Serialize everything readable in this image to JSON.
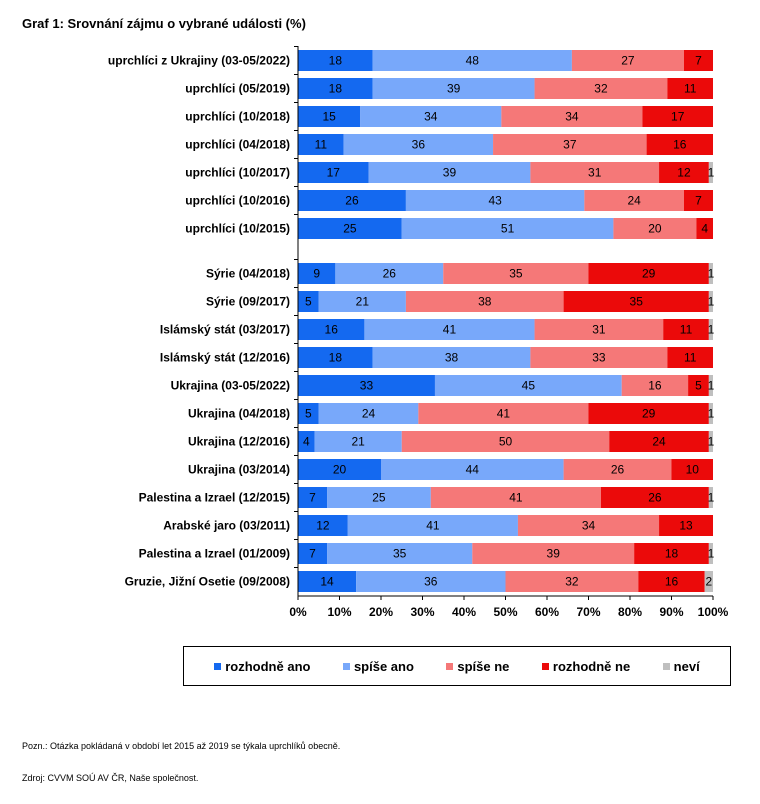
{
  "title": "Graf 1: Srovnání zájmu o vybrané události (%)",
  "note": "Pozn.: Otázka pokládaná v období let 2015 až 2019 se týkala uprchlíků obecně.",
  "source": "Zdroj: CVVM SOÚ AV ČR, Naše společnost.",
  "chart_data": {
    "type": "bar",
    "orientation": "horizontal",
    "stacked": "100%",
    "xlim": [
      0,
      100
    ],
    "x_ticks": [
      "0%",
      "10%",
      "20%",
      "30%",
      "40%",
      "50%",
      "60%",
      "70%",
      "80%",
      "90%",
      "100%"
    ],
    "legend_position": "bottom",
    "series": [
      {
        "name": "rozhodně ano",
        "color": "#1469f0"
      },
      {
        "name": "spíše ano",
        "color": "#78a8fa"
      },
      {
        "name": "spíše ne",
        "color": "#f57878"
      },
      {
        "name": "rozhodně ne",
        "color": "#eb0a0a"
      },
      {
        "name": "neví",
        "color": "#bfbfbf"
      }
    ],
    "rows": [
      {
        "label": "uprchlíci z Ukrajiny (03-05/2022)",
        "values": [
          18,
          48,
          27,
          7,
          0
        ]
      },
      {
        "label": "uprchlíci (05/2019)",
        "values": [
          18,
          39,
          32,
          11,
          0
        ]
      },
      {
        "label": "uprchlíci (10/2018)",
        "values": [
          15,
          34,
          34,
          17,
          0
        ]
      },
      {
        "label": "uprchlíci (04/2018)",
        "values": [
          11,
          36,
          37,
          16,
          0
        ]
      },
      {
        "label": "uprchlíci (10/2017)",
        "values": [
          17,
          39,
          31,
          12,
          1
        ]
      },
      {
        "label": "uprchlíci (10/2016)",
        "values": [
          26,
          43,
          24,
          7,
          0
        ]
      },
      {
        "label": "uprchlíci (10/2015)",
        "values": [
          25,
          51,
          20,
          4,
          0
        ]
      },
      {
        "label": "Sýrie (04/2018)",
        "values": [
          9,
          26,
          35,
          29,
          1
        ]
      },
      {
        "label": "Sýrie (09/2017)",
        "values": [
          5,
          21,
          38,
          35,
          1
        ]
      },
      {
        "label": "Islámský stát (03/2017)",
        "values": [
          16,
          41,
          31,
          11,
          1
        ]
      },
      {
        "label": "Islámský stát (12/2016)",
        "values": [
          18,
          38,
          33,
          11,
          0
        ]
      },
      {
        "label": "Ukrajina (03-05/2022)",
        "values": [
          33,
          45,
          16,
          5,
          1
        ]
      },
      {
        "label": "Ukrajina (04/2018)",
        "values": [
          5,
          24,
          41,
          29,
          1
        ]
      },
      {
        "label": "Ukrajina (12/2016)",
        "values": [
          4,
          21,
          50,
          24,
          1
        ]
      },
      {
        "label": "Ukrajina (03/2014)",
        "values": [
          20,
          44,
          26,
          10,
          0
        ]
      },
      {
        "label": "Palestina a Izrael (12/2015)",
        "values": [
          7,
          25,
          41,
          26,
          1
        ]
      },
      {
        "label": "Arabské jaro (03/2011)",
        "values": [
          12,
          41,
          34,
          13,
          0
        ]
      },
      {
        "label": "Palestina a Izrael (01/2009)",
        "values": [
          7,
          35,
          39,
          18,
          1
        ]
      },
      {
        "label": "Gruzie, Jižní Osetie (09/2008)",
        "values": [
          14,
          36,
          32,
          16,
          2
        ]
      }
    ]
  }
}
